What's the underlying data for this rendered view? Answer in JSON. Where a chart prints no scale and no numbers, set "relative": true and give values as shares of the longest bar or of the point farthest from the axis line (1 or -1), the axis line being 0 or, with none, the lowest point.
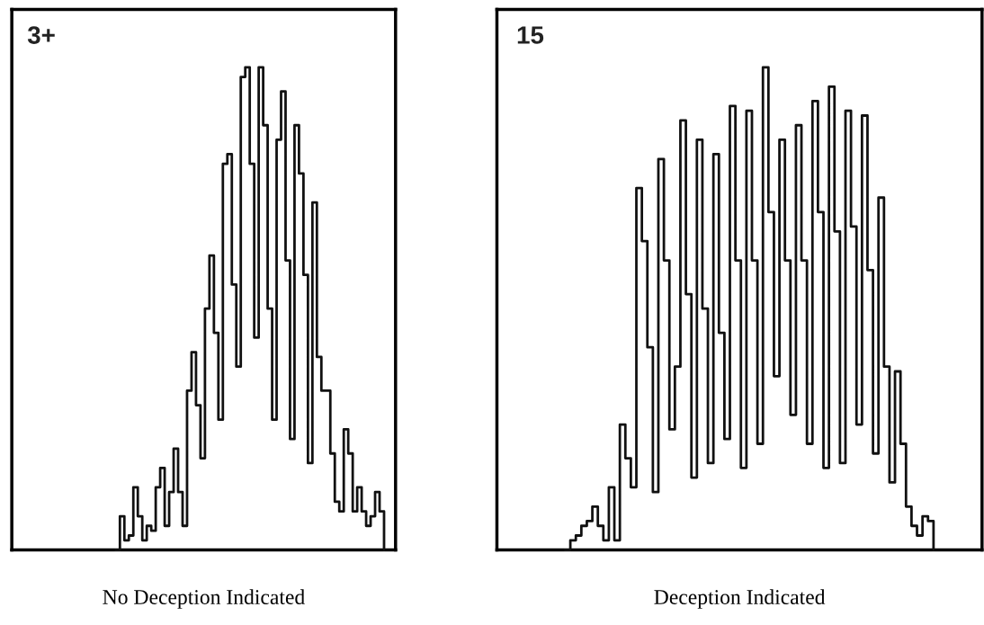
{
  "chart_data": [
    {
      "type": "step",
      "relative": true,
      "color": "#111111",
      "annotations": [
        "3+"
      ],
      "xlabel": "No Deception Indicated",
      "categories": [
        null,
        null,
        null,
        null,
        null,
        null,
        null,
        null,
        null,
        null,
        null,
        null,
        null,
        null,
        null,
        null,
        null,
        null,
        null,
        null,
        null,
        null,
        null,
        null,
        null,
        null,
        null,
        null,
        null,
        null,
        null,
        null,
        null,
        null,
        null,
        null,
        null,
        null,
        null,
        null,
        null,
        null,
        null,
        null,
        null,
        null,
        null,
        null,
        null,
        null,
        null,
        null,
        null,
        null,
        null,
        null,
        null,
        null,
        null,
        null,
        null
      ],
      "values": [
        0,
        0.07,
        0.02,
        0.03,
        0.13,
        0.07,
        0.02,
        0.05,
        0.04,
        0.13,
        0.17,
        0.05,
        0.12,
        0.21,
        0.12,
        0.05,
        0.33,
        0.41,
        0.3,
        0.19,
        0.5,
        0.61,
        0.45,
        0.27,
        0.8,
        0.82,
        0.55,
        0.38,
        0.98,
        1.0,
        0.8,
        0.44,
        1.0,
        0.88,
        0.5,
        0.27,
        0.85,
        0.95,
        0.6,
        0.23,
        0.88,
        0.78,
        0.57,
        0.18,
        0.72,
        0.4,
        0.33,
        0.33,
        0.2,
        0.1,
        0.08,
        0.25,
        0.2,
        0.08,
        0.13,
        0.08,
        0.05,
        0.07,
        0.12,
        0.08,
        0
      ]
    },
    {
      "type": "step",
      "relative": true,
      "color": "#111111",
      "annotations": [
        "15"
      ],
      "xlabel": "Deception Indicated",
      "categories": [
        null,
        null,
        null,
        null,
        null,
        null,
        null,
        null,
        null,
        null,
        null,
        null,
        null,
        null,
        null,
        null,
        null,
        null,
        null,
        null,
        null,
        null,
        null,
        null,
        null,
        null,
        null,
        null,
        null,
        null,
        null,
        null,
        null,
        null,
        null,
        null,
        null,
        null,
        null,
        null,
        null,
        null,
        null,
        null,
        null,
        null,
        null,
        null,
        null,
        null,
        null,
        null,
        null,
        null,
        null,
        null,
        null,
        null,
        null,
        null,
        null,
        null,
        null,
        null,
        null,
        null,
        null,
        null
      ],
      "values": [
        0,
        0.02,
        0.03,
        0.05,
        0.06,
        0.09,
        0.05,
        0.02,
        0.13,
        0.02,
        0.26,
        0.19,
        0.13,
        0.75,
        0.64,
        0.42,
        0.12,
        0.81,
        0.6,
        0.25,
        0.38,
        0.89,
        0.53,
        0.15,
        0.85,
        0.5,
        0.18,
        0.82,
        0.45,
        0.23,
        0.92,
        0.6,
        0.17,
        0.91,
        0.6,
        0.22,
        1.0,
        0.7,
        0.36,
        0.85,
        0.6,
        0.28,
        0.88,
        0.6,
        0.22,
        0.93,
        0.7,
        0.17,
        0.96,
        0.66,
        0.18,
        0.91,
        0.67,
        0.26,
        0.9,
        0.58,
        0.2,
        0.73,
        0.38,
        0.14,
        0.37,
        0.22,
        0.09,
        0.05,
        0.03,
        0.07,
        0.06,
        0
      ]
    }
  ]
}
